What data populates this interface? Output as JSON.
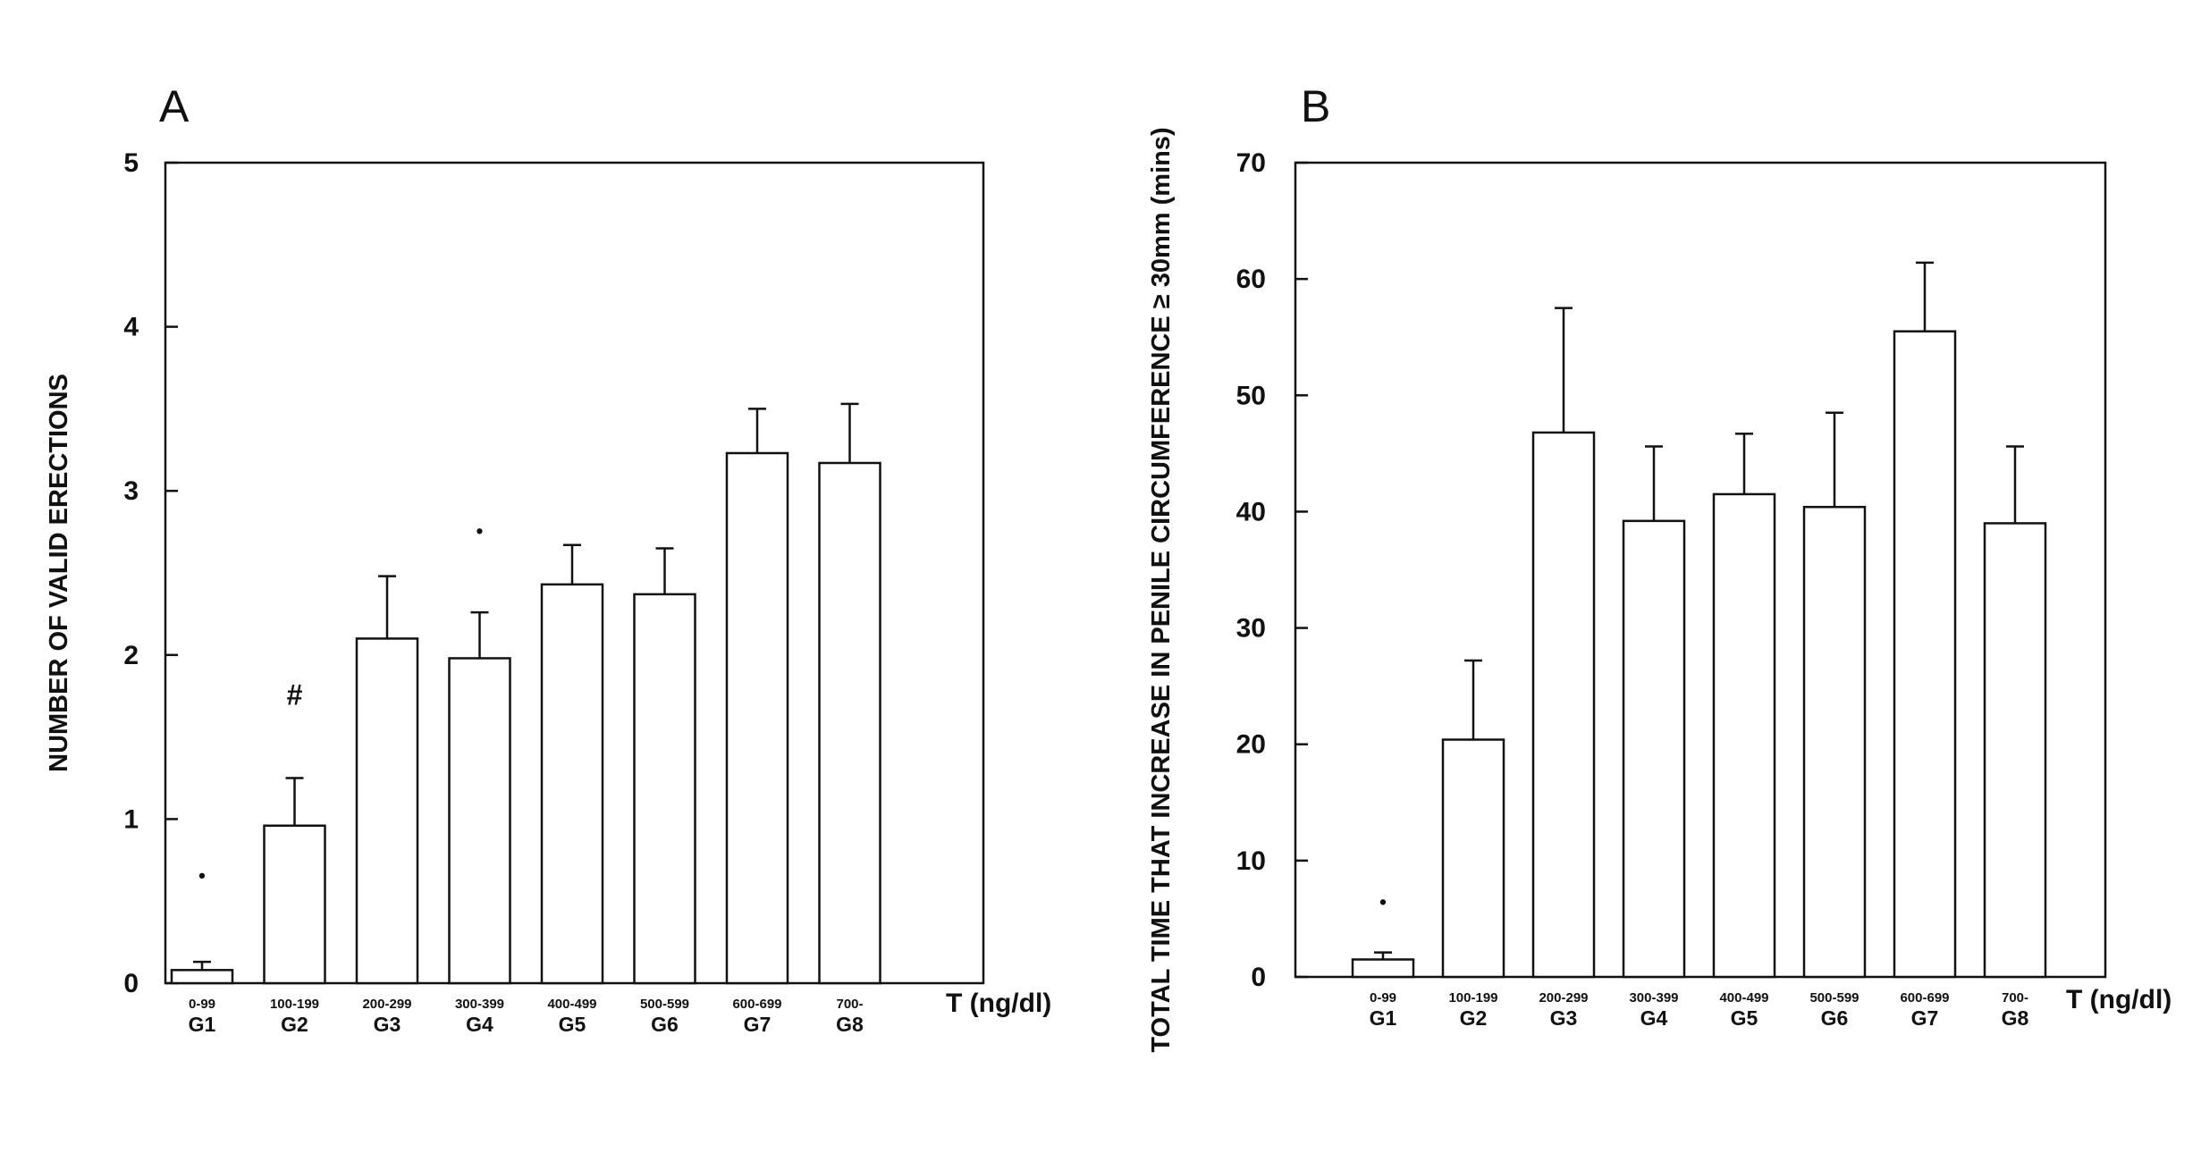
{
  "figure": {
    "colors": {
      "ink": "#111111",
      "bar_fill": "#ffffff",
      "background": "#ffffff"
    }
  },
  "chart_data": [
    {
      "type": "bar",
      "panel_label": "A",
      "ylabel": "NUMBER OF VALID ERECTIONS",
      "xlabel": "T (ng/dl)",
      "ylim": [
        0,
        5
      ],
      "yticks": [
        "0",
        "1",
        "2",
        "3",
        "4",
        "5"
      ],
      "categories": [
        "G1",
        "G2",
        "G3",
        "G4",
        "G5",
        "G6",
        "G7",
        "G8"
      ],
      "category_ranges": [
        "0-99",
        "100-199",
        "200-299",
        "300-399",
        "400-499",
        "500-599",
        "600-699",
        "700-"
      ],
      "values": [
        0.08,
        0.96,
        2.1,
        1.98,
        2.43,
        2.37,
        3.23,
        3.17
      ],
      "errors": [
        0.05,
        0.29,
        0.38,
        0.28,
        0.24,
        0.28,
        0.27,
        0.36
      ],
      "annotations": [
        "•",
        "#",
        "",
        "•",
        "",
        "",
        "",
        ""
      ],
      "annotation_values": [
        0.66,
        1.74,
        null,
        2.76,
        null,
        null,
        null,
        null
      ],
      "grid": false,
      "legend": "none"
    },
    {
      "type": "bar",
      "panel_label": "B",
      "ylabel": "TOTAL TIME THAT INCREASE IN PENILE CIRCUMFERENCE ≥ 30mm (mins)",
      "xlabel": "T (ng/dl)",
      "ylim": [
        0,
        70
      ],
      "yticks": [
        "0",
        "10",
        "20",
        "30",
        "40",
        "50",
        "60",
        "70"
      ],
      "categories": [
        "G1",
        "G2",
        "G3",
        "G4",
        "G5",
        "G6",
        "G7",
        "G8"
      ],
      "category_ranges": [
        "0-99",
        "100-199",
        "200-299",
        "300-399",
        "400-499",
        "500-599",
        "600-699",
        "700-"
      ],
      "values": [
        1.5,
        20.4,
        46.8,
        39.2,
        41.5,
        40.4,
        55.5,
        39.0
      ],
      "errors": [
        0.6,
        6.8,
        10.7,
        6.4,
        5.2,
        8.1,
        5.9,
        6.6
      ],
      "annotations": [
        "•",
        "",
        "",
        "",
        "",
        "",
        "",
        ""
      ],
      "annotation_values": [
        6.5,
        null,
        null,
        null,
        null,
        null,
        null,
        null
      ],
      "grid": false,
      "legend": "none"
    }
  ]
}
